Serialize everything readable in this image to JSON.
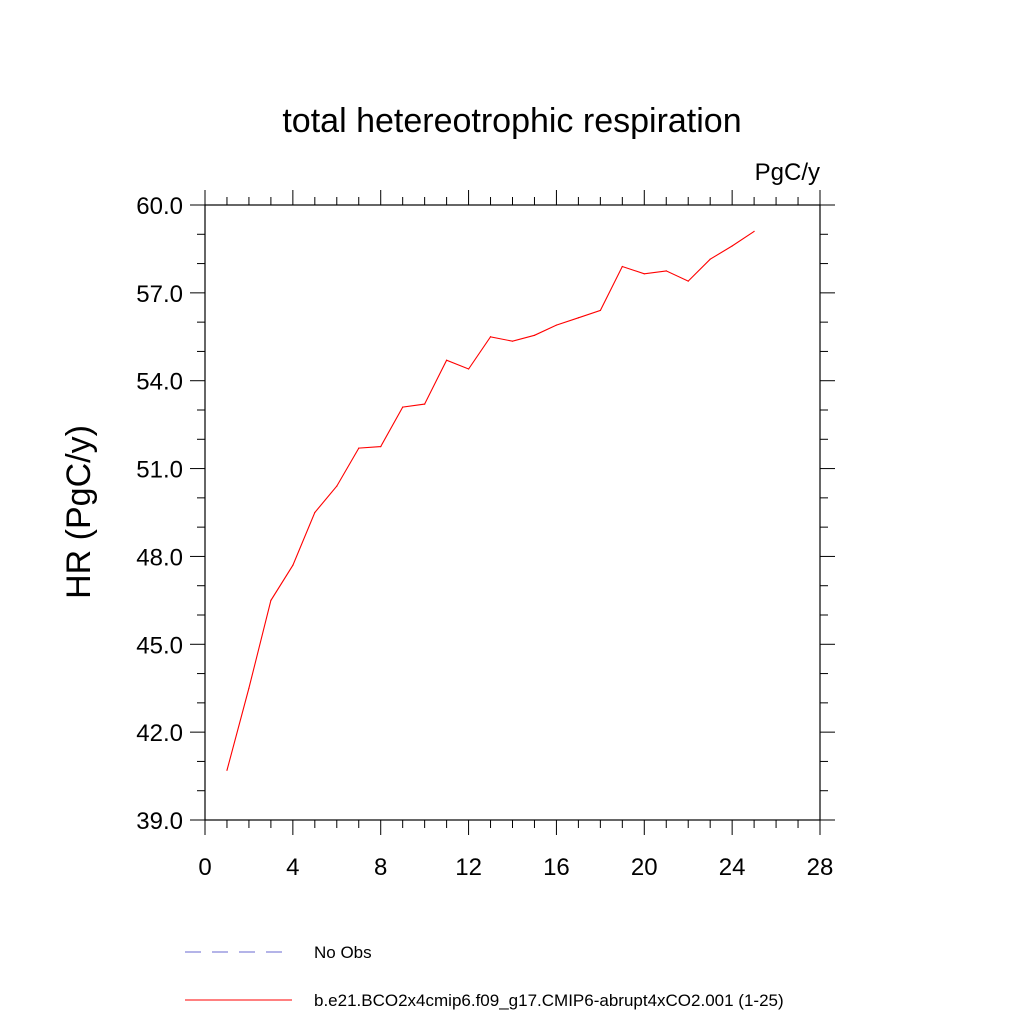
{
  "chart_data": {
    "type": "line",
    "title": "total hetereotrophic respiration",
    "units_label": "PgC/y",
    "xlabel": "",
    "ylabel": "HR  (PgC/y)",
    "xlim": [
      0,
      28
    ],
    "ylim": [
      39.0,
      60.0
    ],
    "x_ticks": [
      0,
      4,
      8,
      12,
      16,
      20,
      24,
      28
    ],
    "x_tick_labels": [
      "0",
      "4",
      "8",
      "12",
      "16",
      "20",
      "24",
      "28"
    ],
    "x_minor_step": 1,
    "y_ticks": [
      39.0,
      42.0,
      45.0,
      48.0,
      51.0,
      54.0,
      57.0,
      60.0
    ],
    "y_tick_labels": [
      "39.0",
      "42.0",
      "45.0",
      "48.0",
      "51.0",
      "54.0",
      "57.0",
      "60.0"
    ],
    "y_minor_step": 1.0,
    "grid": false,
    "series": [
      {
        "name": "b.e21.BCO2x4cmip6.f09_g17.CMIP6-abrupt4xCO2.001 (1-25)",
        "color": "#ff0000",
        "dash": "solid",
        "x": [
          1,
          2,
          3,
          4,
          5,
          6,
          7,
          8,
          9,
          10,
          11,
          12,
          13,
          14,
          15,
          16,
          17,
          18,
          19,
          20,
          21,
          22,
          23,
          24,
          25
        ],
        "values": [
          40.7,
          43.5,
          46.5,
          47.7,
          49.5,
          50.4,
          51.7,
          51.75,
          53.1,
          53.2,
          54.7,
          54.4,
          55.5,
          55.35,
          55.55,
          55.9,
          56.15,
          56.4,
          57.9,
          57.65,
          57.75,
          57.4,
          58.15,
          58.6,
          59.1
        ]
      }
    ],
    "legend": [
      {
        "label": "No Obs",
        "color": "#6a6ad0",
        "dash": "dashed"
      },
      {
        "label": "b.e21.BCO2x4cmip6.f09_g17.CMIP6-abrupt4xCO2.001 (1-25)",
        "color": "#ff0000",
        "dash": "solid"
      }
    ],
    "legend_position": "bottom-left"
  }
}
